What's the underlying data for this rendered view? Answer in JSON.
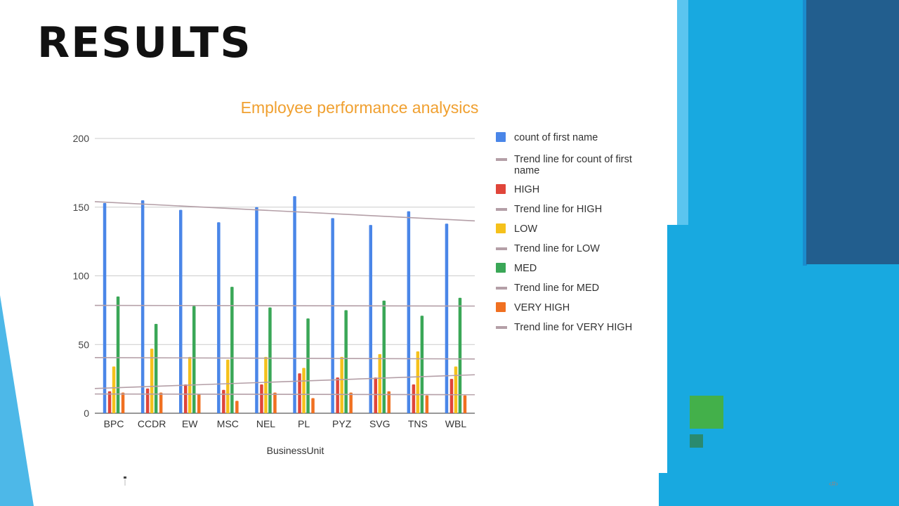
{
  "slide": {
    "title": "RESULTS",
    "page_number": "‹#›",
    "colors": {
      "accent_blue": "#18a9e0",
      "dark_blue": "#225e8e",
      "light_blue": "#5bc5ef",
      "green_square": "#43b04a",
      "teal_square": "#2a8a6f"
    }
  },
  "chart_data": {
    "type": "bar",
    "title": "Employee performance analysics",
    "xlabel": "BusinessUnit",
    "ylabel": "",
    "ylim": [
      0,
      200
    ],
    "yticks": [
      0,
      50,
      100,
      150,
      200
    ],
    "categories": [
      "BPC",
      "CCDR",
      "EW",
      "MSC",
      "NEL",
      "PL",
      "PYZ",
      "SVG",
      "TNS",
      "WBL"
    ],
    "series": [
      {
        "name": "count of first name",
        "color": "#4a86e8",
        "values": [
          153,
          155,
          148,
          139,
          150,
          158,
          142,
          137,
          147,
          138
        ]
      },
      {
        "name": "HIGH",
        "color": "#e0453a",
        "values": [
          16,
          18,
          21,
          17,
          21,
          29,
          26,
          26,
          21,
          25
        ]
      },
      {
        "name": "LOW",
        "color": "#f5c11b",
        "values": [
          34,
          47,
          41,
          39,
          41,
          33,
          41,
          43,
          45,
          34
        ]
      },
      {
        "name": "MED",
        "color": "#3aa757",
        "values": [
          85,
          65,
          78,
          92,
          77,
          69,
          75,
          82,
          71,
          84
        ]
      },
      {
        "name": "VERY HIGH",
        "color": "#f07021",
        "values": [
          15,
          15,
          14,
          9,
          15,
          11,
          15,
          16,
          13,
          13
        ]
      }
    ],
    "trendlines": [
      {
        "name": "Trend line for count of first name",
        "color": "#b49fa7",
        "start": 154,
        "end": 140
      },
      {
        "name": "Trend line for HIGH",
        "color": "#b49fa7",
        "start": 18,
        "end": 28
      },
      {
        "name": "Trend line for LOW",
        "color": "#b49fa7",
        "start": 40.5,
        "end": 39.5
      },
      {
        "name": "Trend line for MED",
        "color": "#b49fa7",
        "start": 78.5,
        "end": 78
      },
      {
        "name": "Trend line for VERY HIGH",
        "color": "#b49fa7",
        "start": 14,
        "end": 13.5
      }
    ],
    "legend": [
      {
        "label": "count of first name",
        "kind": "box",
        "color": "#4a86e8"
      },
      {
        "label": "Trend line for count of first name",
        "kind": "line",
        "color": "#b49fa7"
      },
      {
        "label": "HIGH",
        "kind": "box",
        "color": "#e0453a"
      },
      {
        "label": "Trend line for HIGH",
        "kind": "line",
        "color": "#b49fa7"
      },
      {
        "label": "LOW",
        "kind": "box",
        "color": "#f5c11b"
      },
      {
        "label": "Trend line for LOW",
        "kind": "line",
        "color": "#b49fa7"
      },
      {
        "label": "MED",
        "kind": "box",
        "color": "#3aa757"
      },
      {
        "label": "Trend line for MED",
        "kind": "line",
        "color": "#b49fa7"
      },
      {
        "label": "VERY HIGH",
        "kind": "box",
        "color": "#f07021"
      },
      {
        "label": "Trend line for VERY HIGH",
        "kind": "line",
        "color": "#b49fa7"
      }
    ],
    "legend_position": "right",
    "grid": true
  }
}
